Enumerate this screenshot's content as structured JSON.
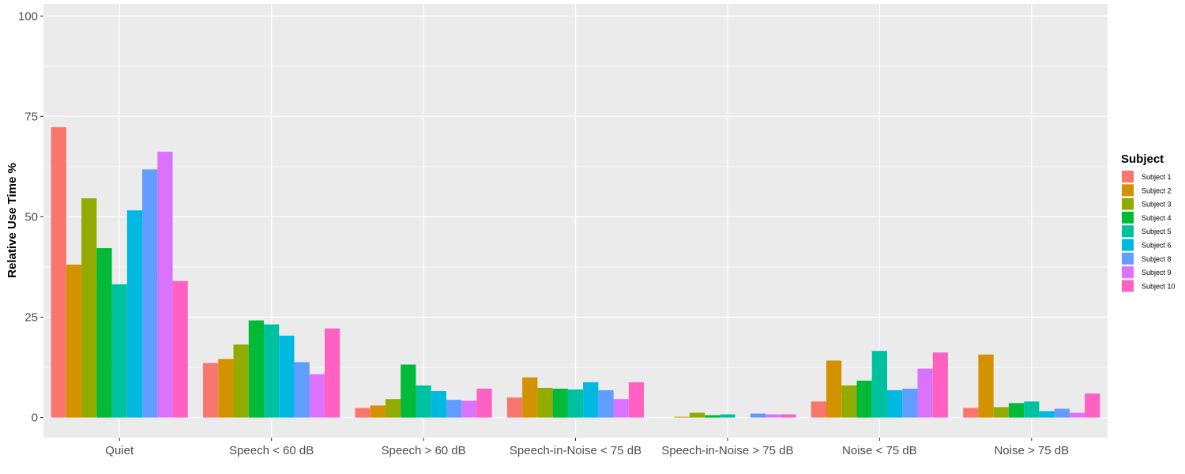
{
  "chart_data": {
    "type": "bar",
    "ylabel": "Relative Use Time %",
    "xlabel": "",
    "ylim": [
      -5,
      103
    ],
    "yticks": [
      0,
      25,
      50,
      75,
      100
    ],
    "grid": true,
    "legend": {
      "title": "Subject",
      "position": "right"
    },
    "categories": [
      "Quiet",
      "Speech < 60 dB",
      "Speech > 60 dB",
      "Speech-in-Noise < 75 dB",
      "Speech-in-Noise > 75 dB",
      "Noise < 75 dB",
      "Noise > 75 dB"
    ],
    "series": [
      {
        "name": "Subject 1",
        "color": "#F8766D",
        "values": [
          72.3,
          13.6,
          2.4,
          5.0,
          0.0,
          4.0,
          2.4
        ]
      },
      {
        "name": "Subject 2",
        "color": "#D39200",
        "values": [
          38.1,
          14.6,
          3.0,
          10.0,
          0.2,
          14.2,
          15.7
        ]
      },
      {
        "name": "Subject 3",
        "color": "#93AA00",
        "values": [
          54.6,
          18.2,
          4.6,
          7.4,
          1.2,
          8.0,
          2.6
        ]
      },
      {
        "name": "Subject 4",
        "color": "#00BA38",
        "values": [
          42.2,
          24.2,
          13.2,
          7.2,
          0.6,
          9.2,
          3.6
        ]
      },
      {
        "name": "Subject 5",
        "color": "#00C19F",
        "values": [
          33.2,
          23.2,
          8.0,
          7.0,
          0.8,
          16.6,
          4.0
        ]
      },
      {
        "name": "Subject 6",
        "color": "#00B9E3",
        "values": [
          51.6,
          20.4,
          6.6,
          8.8,
          0.0,
          6.8,
          1.6
        ]
      },
      {
        "name": "Subject 8",
        "color": "#619CFF",
        "values": [
          61.8,
          13.8,
          4.4,
          6.8,
          1.0,
          7.2,
          2.2
        ]
      },
      {
        "name": "Subject 9",
        "color": "#DB72FB",
        "values": [
          66.2,
          10.8,
          4.2,
          4.6,
          0.8,
          12.2,
          1.2
        ]
      },
      {
        "name": "Subject 10",
        "color": "#FF61C3",
        "values": [
          34.0,
          22.2,
          7.2,
          8.8,
          0.8,
          16.2,
          6.0
        ]
      }
    ]
  }
}
